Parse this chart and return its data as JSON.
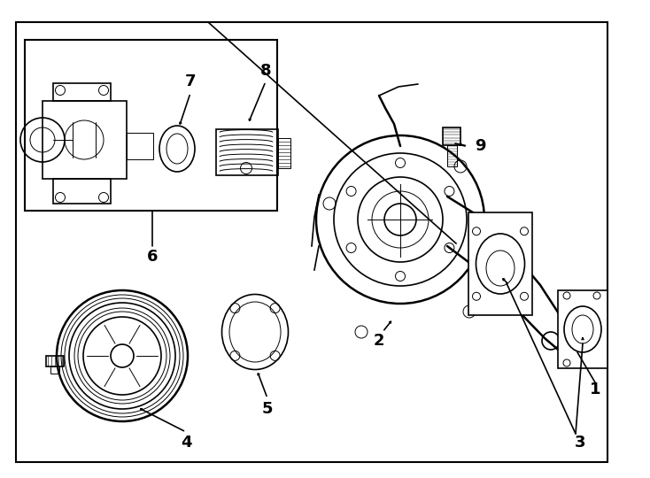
{
  "bg_color": "#ffffff",
  "border_color": "#000000",
  "line_color": "#000000",
  "line_width": 1.2,
  "thin_line": 0.7,
  "thick_line": 1.8,
  "fig_width": 7.34,
  "fig_height": 5.4
}
